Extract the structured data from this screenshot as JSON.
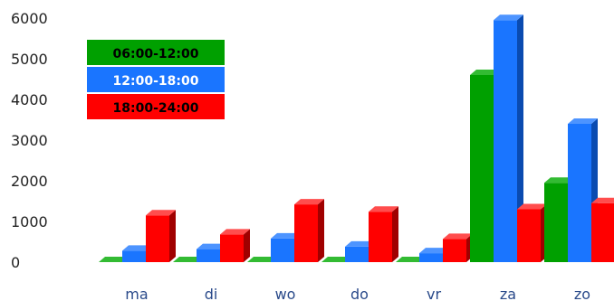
{
  "chart_data": {
    "type": "bar",
    "title": "",
    "xlabel": "",
    "ylabel": "",
    "categories": [
      "ma",
      "di",
      "wo",
      "do",
      "vr",
      "za",
      "zo"
    ],
    "ylim": [
      0,
      6000
    ],
    "yticks": [
      0,
      1000,
      2000,
      3000,
      4000,
      5000,
      6000
    ],
    "yticklabels": [
      "0",
      "1000",
      "2000",
      "3000",
      "4000",
      "5000",
      "6000"
    ],
    "grid": false,
    "legend_position": "top-left",
    "series": [
      {
        "name": "06:00-12:00",
        "color": "#00a000",
        "side_color": "#006400",
        "top_color": "#33bb33",
        "text_color": "#000000",
        "values": [
          0,
          0,
          0,
          0,
          0,
          4600,
          1950
        ]
      },
      {
        "name": "12:00-18:00",
        "color": "#1a75ff",
        "side_color": "#0a4bb0",
        "top_color": "#4d94ff",
        "text_color": "#ffffff",
        "values": [
          280,
          320,
          580,
          380,
          220,
          5950,
          3400
        ]
      },
      {
        "name": "18:00-24:00",
        "color": "#ff0000",
        "side_color": "#a00000",
        "top_color": "#ff4d4d",
        "text_color": "#000000",
        "values": [
          1150,
          680,
          1420,
          1240,
          570,
          1300,
          1450
        ]
      }
    ]
  }
}
